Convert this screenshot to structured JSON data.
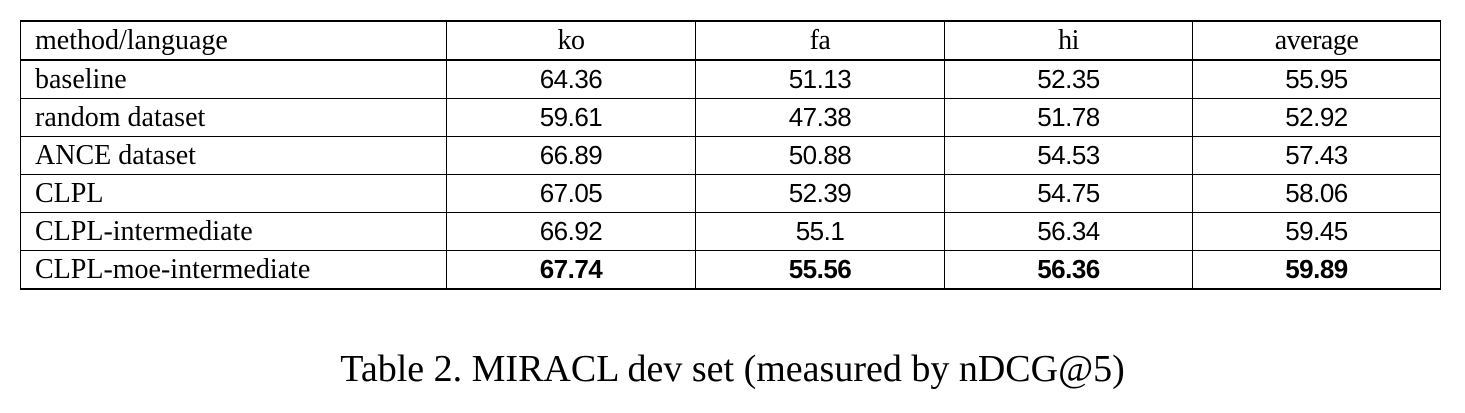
{
  "table": {
    "columns": [
      "method/language",
      "ko",
      "fa",
      "hi",
      "average"
    ],
    "rows": [
      {
        "method": "baseline",
        "ko": "64.36",
        "fa": "51.13",
        "hi": "52.35",
        "average": "55.95"
      },
      {
        "method": "random  dataset",
        "ko": "59.61",
        "fa": "47.38",
        "hi": "51.78",
        "average": "52.92"
      },
      {
        "method": "ANCE  dataset",
        "ko": "66.89",
        "fa": "50.88",
        "hi": "54.53",
        "average": "57.43"
      },
      {
        "method": "CLPL",
        "ko": "67.05",
        "fa": "52.39",
        "hi": "54.75",
        "average": "58.06"
      },
      {
        "method": "CLPL-intermediate",
        "ko": "66.92",
        "fa": "55.1",
        "hi": "56.34",
        "average": "59.45"
      },
      {
        "method": "CLPL-moe-intermediate",
        "ko": "67.74",
        "fa": "55.56",
        "hi": "56.36",
        "average": "59.89"
      }
    ]
  },
  "caption": "Table 2. MIRACL dev set (measured by nDCG@5)"
}
